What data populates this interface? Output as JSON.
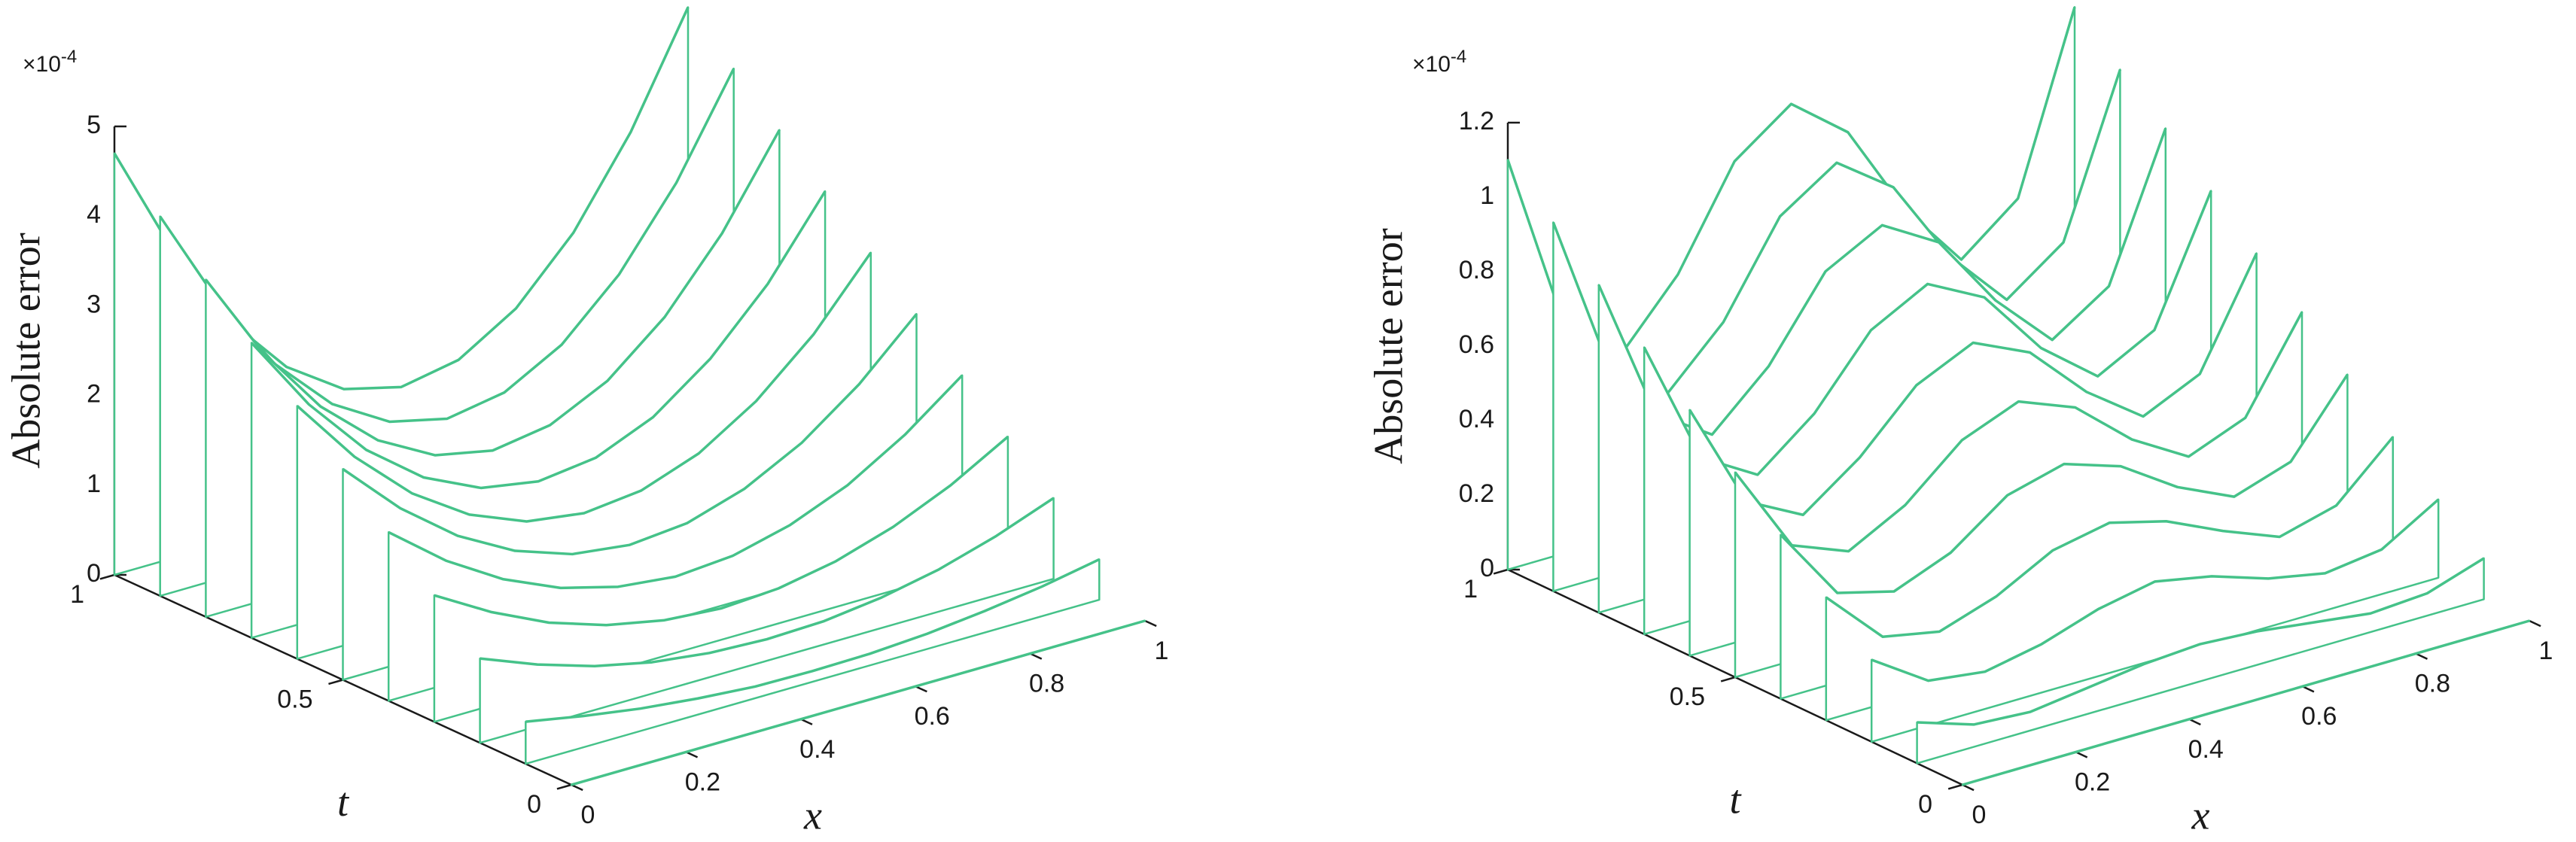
{
  "chart_data": [
    {
      "type": "waterfall",
      "xlabel": "x",
      "ylabel": "t",
      "zlabel": "Absolute error",
      "z_scale_label": "×10",
      "z_scale_exponent": "-4",
      "color": "#45c289",
      "xlim": [
        0,
        1
      ],
      "xticks": [
        0,
        0.2,
        0.4,
        0.6,
        0.8,
        1
      ],
      "ylim": [
        0,
        1
      ],
      "yticks": [
        0,
        0.5,
        1
      ],
      "zlim": [
        0,
        5
      ],
      "zticks": [
        0,
        1,
        2,
        3,
        4,
        5
      ],
      "x": [
        0,
        0.1,
        0.2,
        0.3,
        0.4,
        0.5,
        0.6,
        0.7,
        0.8,
        0.9,
        1
      ],
      "y": [
        0,
        0.1,
        0.2,
        0.3,
        0.4,
        0.5,
        0.6,
        0.7,
        0.8,
        0.9,
        1
      ],
      "z": [
        [
          0,
          0,
          0,
          0,
          0,
          0,
          0,
          0,
          0,
          0,
          0
        ],
        [
          0.47,
          0.35,
          0.25,
          0.18,
          0.13,
          0.12,
          0.13,
          0.17,
          0.24,
          0.33,
          0.45
        ],
        [
          0.94,
          0.69,
          0.49,
          0.35,
          0.27,
          0.24,
          0.26,
          0.34,
          0.47,
          0.66,
          0.9
        ],
        [
          1.41,
          1.04,
          0.74,
          0.53,
          0.4,
          0.35,
          0.39,
          0.51,
          0.71,
          0.99,
          1.35
        ],
        [
          1.88,
          1.38,
          0.99,
          0.71,
          0.54,
          0.47,
          0.52,
          0.68,
          0.94,
          1.32,
          1.8
        ],
        [
          2.35,
          1.73,
          1.24,
          0.89,
          0.67,
          0.59,
          0.65,
          0.85,
          1.18,
          1.65,
          2.25
        ],
        [
          2.82,
          2.07,
          1.48,
          1.06,
          0.8,
          0.71,
          0.78,
          1.01,
          1.41,
          1.97,
          2.7
        ],
        [
          3.29,
          2.42,
          1.73,
          1.24,
          0.94,
          0.83,
          0.91,
          1.18,
          1.65,
          2.3,
          3.15
        ],
        [
          3.76,
          2.76,
          1.98,
          1.42,
          1.07,
          0.94,
          1.04,
          1.35,
          1.88,
          2.63,
          3.6
        ],
        [
          4.23,
          3.11,
          2.22,
          1.59,
          1.21,
          1.06,
          1.17,
          1.52,
          2.12,
          2.96,
          4.05
        ],
        [
          4.7,
          3.45,
          2.47,
          1.77,
          1.34,
          1.18,
          1.3,
          1.69,
          2.35,
          3.29,
          4.5
        ]
      ]
    },
    {
      "type": "waterfall",
      "xlabel": "x",
      "ylabel": "t",
      "zlabel": "Absolute error",
      "z_scale_label": "×10",
      "z_scale_exponent": "-4",
      "color": "#45c289",
      "xlim": [
        0,
        1
      ],
      "xticks": [
        0,
        0.2,
        0.4,
        0.6,
        0.8,
        1
      ],
      "ylim": [
        0,
        1
      ],
      "yticks": [
        0,
        0.5,
        1
      ],
      "zlim": [
        0,
        1.2
      ],
      "zticks": [
        0,
        0.2,
        0.4,
        0.6,
        0.8,
        1,
        1.2
      ],
      "x": [
        0,
        0.1,
        0.2,
        0.3,
        0.4,
        0.5,
        0.6,
        0.7,
        0.8,
        0.9,
        1
      ],
      "y": [
        0,
        0.1,
        0.2,
        0.3,
        0.4,
        0.5,
        0.6,
        0.7,
        0.8,
        0.9,
        1
      ],
      "z": [
        [
          0,
          0,
          0,
          0,
          0,
          0,
          0,
          0,
          0,
          0,
          0
        ],
        [
          0.11,
          0.06,
          0.05,
          0.07,
          0.09,
          0.1,
          0.09,
          0.07,
          0.05,
          0.06,
          0.11
        ],
        [
          0.22,
          0.12,
          0.1,
          0.13,
          0.18,
          0.21,
          0.18,
          0.13,
          0.1,
          0.12,
          0.21
        ],
        [
          0.33,
          0.18,
          0.15,
          0.2,
          0.28,
          0.31,
          0.27,
          0.2,
          0.14,
          0.18,
          0.32
        ],
        [
          0.44,
          0.24,
          0.2,
          0.26,
          0.37,
          0.41,
          0.36,
          0.26,
          0.19,
          0.24,
          0.43
        ],
        [
          0.55,
          0.31,
          0.25,
          0.33,
          0.46,
          0.52,
          0.46,
          0.33,
          0.24,
          0.3,
          0.54
        ],
        [
          0.66,
          0.37,
          0.29,
          0.4,
          0.55,
          0.62,
          0.55,
          0.4,
          0.29,
          0.36,
          0.64
        ],
        [
          0.77,
          0.43,
          0.34,
          0.46,
          0.64,
          0.72,
          0.64,
          0.46,
          0.34,
          0.42,
          0.75
        ],
        [
          0.88,
          0.49,
          0.39,
          0.53,
          0.74,
          0.82,
          0.73,
          0.53,
          0.38,
          0.48,
          0.86
        ],
        [
          0.99,
          0.55,
          0.44,
          0.59,
          0.83,
          0.93,
          0.82,
          0.59,
          0.43,
          0.54,
          0.96
        ],
        [
          1.1,
          0.61,
          0.49,
          0.66,
          0.92,
          1.03,
          0.91,
          0.66,
          0.48,
          0.6,
          1.07
        ]
      ]
    }
  ]
}
